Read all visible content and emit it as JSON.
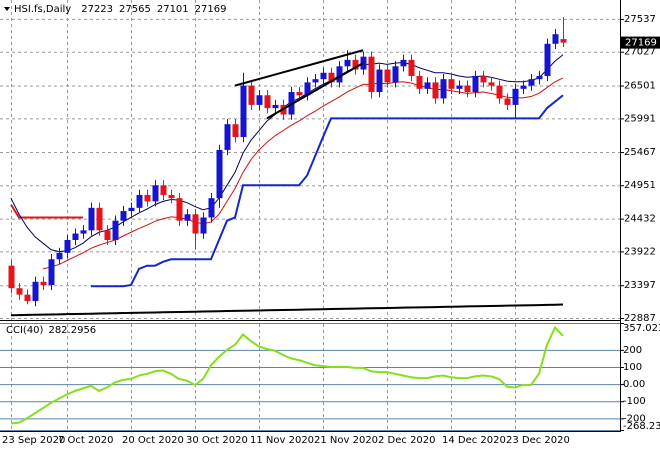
{
  "chart_data": [
    {
      "type": "candlestick",
      "title": "HSI.fs,Daily",
      "categories": [
        "23 Sep 2020",
        null,
        null,
        null,
        null,
        null,
        null,
        "7 Oct 2020",
        null,
        null,
        null,
        null,
        null,
        null,
        null,
        "20 Oct 2020",
        null,
        null,
        null,
        null,
        null,
        null,
        null,
        "30 Oct 2020",
        null,
        null,
        null,
        null,
        null,
        null,
        null,
        "11 Nov 2020",
        null,
        null,
        null,
        null,
        null,
        null,
        null,
        "21 Nov 2020",
        null,
        null,
        null,
        null,
        null,
        null,
        null,
        "2 Dec 2020",
        null,
        null,
        null,
        null,
        null,
        null,
        null,
        "14 Dec 2020",
        null,
        null,
        null,
        null,
        null,
        null,
        null,
        "23 Dec 2020",
        null,
        null,
        null,
        null,
        null,
        null
      ],
      "open": [
        23700,
        23350,
        23250,
        23150,
        23450,
        23400,
        23800,
        23900,
        24100,
        24200,
        24250,
        24600,
        24250,
        24100,
        24400,
        24550,
        24600,
        24800,
        24700,
        24950,
        24800,
        24750,
        24400,
        24500,
        24200,
        24450,
        24750,
        25500,
        25900,
        25700,
        26500,
        26200,
        26350,
        26150,
        26200,
        26050,
        26400,
        26350,
        26550,
        26600,
        26700,
        26550,
        26800,
        26900,
        26750,
        26950,
        26400,
        26750,
        26550,
        26800,
        26900,
        26650,
        26450,
        26550,
        26300,
        26600,
        26450,
        26500,
        26400,
        26650,
        26550,
        26500,
        26300,
        26200,
        26450,
        26500,
        26600,
        26650,
        27150,
        27223
      ],
      "high": [
        23780,
        23430,
        23330,
        23530,
        23530,
        23880,
        23980,
        24180,
        24280,
        24330,
        24680,
        24680,
        24330,
        24480,
        24630,
        24680,
        24880,
        24880,
        25030,
        25030,
        24880,
        24830,
        24580,
        24580,
        24530,
        24830,
        25580,
        25980,
        25980,
        26700,
        26580,
        26430,
        26430,
        26280,
        26280,
        26480,
        26480,
        26630,
        26680,
        26780,
        26780,
        26880,
        27050,
        26980,
        27030,
        27030,
        26830,
        26830,
        26880,
        26980,
        26980,
        26730,
        26630,
        26630,
        26680,
        26680,
        26580,
        26580,
        26730,
        26730,
        26630,
        26580,
        26380,
        26530,
        26580,
        26680,
        26730,
        27230,
        27380,
        27565
      ],
      "low": [
        23270,
        23170,
        23100,
        23070,
        23320,
        23320,
        23720,
        23820,
        24020,
        24120,
        24170,
        24170,
        24020,
        24020,
        24320,
        24470,
        24520,
        24620,
        24620,
        24720,
        24670,
        24320,
        24320,
        23950,
        24120,
        24370,
        24600,
        25420,
        25620,
        25620,
        26120,
        26120,
        26070,
        26070,
        25970,
        25970,
        26270,
        26270,
        26470,
        26520,
        26470,
        26470,
        26720,
        26670,
        26670,
        26300,
        26320,
        26470,
        26470,
        26720,
        26570,
        26370,
        26370,
        26220,
        26220,
        26370,
        26370,
        26320,
        26320,
        26470,
        26420,
        26220,
        26120,
        25990,
        26370,
        26420,
        26520,
        26570,
        27070,
        27101
      ],
      "close": [
        23350,
        23250,
        23150,
        23450,
        23400,
        23800,
        23900,
        24100,
        24200,
        24250,
        24600,
        24250,
        24100,
        24400,
        24550,
        24600,
        24800,
        24700,
        24950,
        24800,
        24750,
        24400,
        24500,
        24200,
        24450,
        24750,
        25500,
        25900,
        25700,
        26500,
        26200,
        26350,
        26150,
        26200,
        26050,
        26400,
        26350,
        26550,
        26600,
        26700,
        26550,
        26800,
        26900,
        26750,
        26950,
        26400,
        26750,
        26550,
        26800,
        26900,
        26650,
        26450,
        26550,
        26300,
        26600,
        26450,
        26500,
        26400,
        26650,
        26550,
        26500,
        26300,
        26200,
        26450,
        26500,
        26600,
        26650,
        27150,
        27300,
        27169
      ],
      "bull_color": "#1414d2",
      "bear_color": "#e3141a",
      "ylim": [
        22887,
        27800
      ],
      "yticks": [
        27537,
        27027,
        26501,
        25991,
        25467,
        24951,
        24432,
        23922,
        23397,
        22887
      ],
      "grid": true,
      "series": [
        {
          "color": "#000000",
          "width": 2,
          "values": [
            22930,
            22932,
            22935,
            22937,
            22940,
            22942,
            22944,
            22947,
            22949,
            22952,
            22954,
            22956,
            22959,
            22961,
            22964,
            22966,
            22968,
            22971,
            22973,
            22976,
            22978,
            22980,
            22983,
            22985,
            22988,
            22990,
            22992,
            22995,
            22997,
            23000,
            23002,
            23004,
            23007,
            23009,
            23012,
            23014,
            23016,
            23019,
            23021,
            23024,
            23026,
            23028,
            23031,
            23033,
            23036,
            23038,
            23040,
            23043,
            23045,
            23048,
            23050,
            23052,
            23055,
            23057,
            23060,
            23062,
            23064,
            23067,
            23069,
            23072,
            23074,
            23076,
            23079,
            23081,
            23084,
            23086,
            23088,
            23091,
            23093,
            23096
          ]
        },
        {
          "color": "#e3141a",
          "width": 2,
          "values": [
            24650,
            24450,
            24450,
            24450,
            24450,
            24450,
            24450,
            24450,
            24450,
            24450,
            null,
            null,
            null,
            null,
            null,
            null,
            null,
            null,
            null,
            null,
            null,
            null,
            null,
            null,
            null,
            null,
            null,
            null,
            null,
            null,
            null,
            null,
            null,
            null,
            null,
            null,
            null,
            null,
            null,
            null,
            null,
            null,
            null,
            null,
            null,
            null,
            null,
            null,
            null,
            null,
            null,
            null,
            null,
            null,
            null,
            null,
            null,
            null,
            null,
            null,
            null,
            null,
            null,
            null,
            null,
            null,
            null,
            null,
            null,
            null
          ]
        },
        {
          "color": "#1428c8",
          "width": 2,
          "values": [
            null,
            null,
            null,
            null,
            null,
            null,
            null,
            null,
            null,
            null,
            23380,
            23380,
            23380,
            23380,
            23380,
            23400,
            23650,
            23700,
            23700,
            23760,
            23800,
            23800,
            23800,
            23800,
            23800,
            23800,
            24100,
            24400,
            24450,
            24950,
            24950,
            24950,
            24950,
            24950,
            24950,
            24950,
            24950,
            25100,
            25400,
            25700,
            25990,
            25990,
            25990,
            25990,
            25990,
            25990,
            25990,
            25990,
            25990,
            25990,
            25990,
            25990,
            25990,
            25990,
            25990,
            25990,
            25990,
            25990,
            25990,
            25990,
            25990,
            25990,
            25990,
            25990,
            25990,
            25990,
            25990,
            26150,
            26250,
            26350
          ]
        },
        {
          "color": "#000060",
          "width": 1,
          "values": [
            24750,
            24500,
            24300,
            24150,
            24050,
            23950,
            23920,
            23930,
            23980,
            24050,
            24150,
            24220,
            24250,
            24300,
            24380,
            24450,
            24520,
            24580,
            24650,
            24700,
            24730,
            24720,
            24680,
            24620,
            24570,
            24600,
            24750,
            24950,
            25150,
            25450,
            25650,
            25800,
            25950,
            26050,
            26150,
            26250,
            26300,
            26380,
            26450,
            26520,
            26580,
            26650,
            26720,
            26780,
            26830,
            26830,
            26850,
            26830,
            26850,
            26860,
            26830,
            26780,
            26740,
            26700,
            26700,
            26680,
            26650,
            26630,
            26640,
            26650,
            26630,
            26600,
            26570,
            26560,
            26560,
            26580,
            26620,
            26750,
            26880,
            26980
          ]
        },
        {
          "color": "#d01010",
          "width": 1,
          "values": [
            null,
            null,
            null,
            null,
            23650,
            23680,
            23720,
            23780,
            23840,
            23900,
            23970,
            24020,
            24060,
            24100,
            24160,
            24220,
            24280,
            24330,
            24390,
            24430,
            24460,
            24450,
            24420,
            24380,
            24350,
            24380,
            24500,
            24700,
            24900,
            25150,
            25350,
            25500,
            25620,
            25720,
            25800,
            25880,
            25950,
            26030,
            26100,
            26180,
            26250,
            26320,
            26400,
            26460,
            26520,
            26520,
            26540,
            26530,
            26550,
            26560,
            26540,
            26500,
            26470,
            26440,
            26440,
            26420,
            26400,
            26380,
            26390,
            26400,
            26380,
            26350,
            26320,
            26310,
            26310,
            26330,
            26380,
            26470,
            26560,
            26620
          ]
        }
      ],
      "trendlines": [
        {
          "color": "#000000",
          "x": [
            28,
            44
          ],
          "values": [
            26500,
            27050
          ]
        },
        {
          "color": "#000000",
          "x": [
            32,
            44
          ],
          "values": [
            25990,
            26850
          ]
        }
      ]
    },
    {
      "type": "line",
      "title": "CCI(40)",
      "color": "#84e01c",
      "level_color": "#5a86aa",
      "values": [
        -230,
        -225,
        -200,
        -170,
        -140,
        -110,
        -85,
        -60,
        -40,
        -25,
        -10,
        -40,
        -20,
        10,
        25,
        30,
        50,
        60,
        75,
        80,
        60,
        30,
        20,
        -5,
        30,
        110,
        160,
        200,
        230,
        290,
        250,
        220,
        205,
        195,
        170,
        150,
        140,
        125,
        110,
        105,
        100,
        100,
        100,
        95,
        95,
        75,
        70,
        70,
        60,
        50,
        40,
        35,
        35,
        45,
        50,
        40,
        35,
        35,
        45,
        50,
        45,
        30,
        -15,
        -20,
        -5,
        -5,
        60,
        230,
        330,
        282.2956
      ],
      "ylim": [
        -268.233,
        357.0238
      ],
      "yticks": [
        357.0238,
        200,
        100,
        {
          "value": 0,
          "label": "0.00"
        },
        -100,
        -200,
        -268.233
      ]
    }
  ]
}
